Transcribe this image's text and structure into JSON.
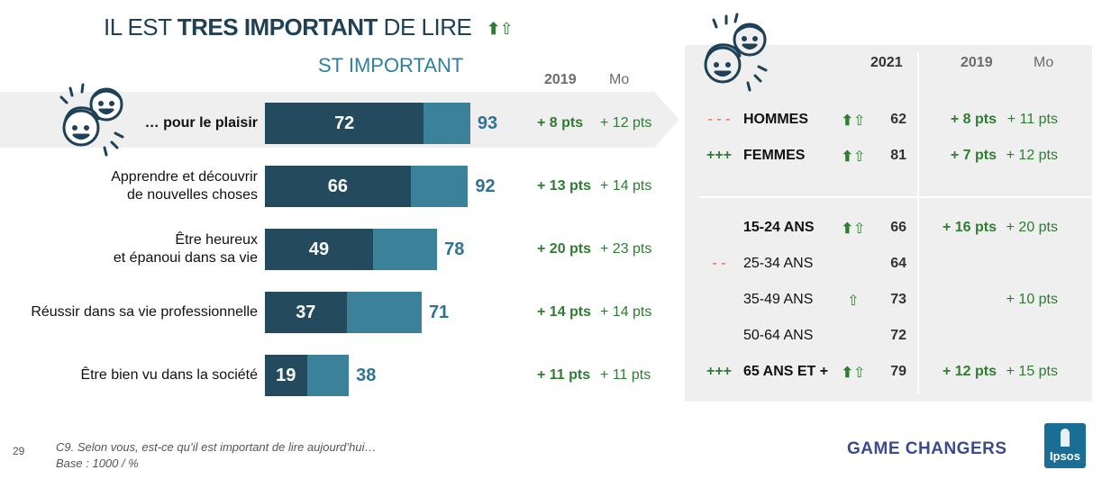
{
  "header": {
    "title_pre": "IL EST ",
    "title_bold": "TRES IMPORTANT",
    "title_post": " DE LIRE",
    "subtitle": "ST IMPORTANT",
    "col_2019": "2019",
    "col_mo": "Mo"
  },
  "chart_data": {
    "type": "bar",
    "categories": [
      "… pour le plaisir",
      "Apprendre et découvrir de nouvelles choses",
      "Être heureux et épanoui dans sa vie",
      "Réussir dans sa vie professionnelle",
      "Être bien vu dans la société"
    ],
    "category_lines": [
      [
        "… pour le plaisir"
      ],
      [
        "Apprendre et découvrir",
        "de nouvelles choses"
      ],
      [
        "Être heureux",
        "et épanoui dans sa vie"
      ],
      [
        "Réussir dans sa vie professionnelle"
      ],
      [
        "Être bien vu dans la société"
      ]
    ],
    "series": [
      {
        "values": [
          72,
          66,
          49,
          37,
          19
        ],
        "color": "#234b5d"
      },
      {
        "values": [
          93,
          92,
          78,
          71,
          38
        ],
        "color": "#3a8199"
      }
    ],
    "delta_2019": [
      "+ 8 pts",
      "+ 13 pts",
      "+ 20 pts",
      "+ 14 pts",
      "+ 11 pts"
    ],
    "delta_mo": [
      "+ 12 pts",
      "+ 14 pts",
      "+ 23 pts",
      "+ 14 pts",
      "+ 11 pts"
    ],
    "highlighted_index": 0,
    "xlim": [
      0,
      100
    ]
  },
  "panel": {
    "col_2021": "2021",
    "col_2019": "2019",
    "col_mo": "Mo",
    "rows": [
      {
        "sig": "- - -",
        "sig_type": "red",
        "label": "HOMMES",
        "bold": true,
        "arrow": "solid-hollow",
        "value": "62",
        "d2019": "+ 8 pts",
        "dmo": "+ 11 pts"
      },
      {
        "sig": "+++",
        "sig_type": "green",
        "label": "FEMMES",
        "bold": true,
        "arrow": "solid-hollow",
        "value": "81",
        "d2019": "+ 7 pts",
        "dmo": "+ 12 pts"
      },
      {
        "sig": "",
        "sig_type": "",
        "label": "15-24 ANS",
        "bold": true,
        "arrow": "solid-hollow",
        "value": "66",
        "d2019": "+ 16 pts",
        "dmo": "+ 20 pts"
      },
      {
        "sig": "- -",
        "sig_type": "red",
        "label": "25-34 ANS",
        "bold": false,
        "arrow": "",
        "value": "64",
        "d2019": "",
        "dmo": ""
      },
      {
        "sig": "",
        "sig_type": "",
        "label": "35-49 ANS",
        "bold": false,
        "arrow": "hollow",
        "value": "73",
        "d2019": "",
        "dmo": "+ 10 pts"
      },
      {
        "sig": "",
        "sig_type": "",
        "label": "50-64 ANS",
        "bold": false,
        "arrow": "",
        "value": "72",
        "d2019": "",
        "dmo": ""
      },
      {
        "sig": "+++",
        "sig_type": "green",
        "label": "65 ANS ET +",
        "bold": true,
        "arrow": "solid-hollow",
        "value": "79",
        "d2019": "+ 12 pts",
        "dmo": "+ 15 pts"
      }
    ]
  },
  "footer": {
    "page_number": "29",
    "question": "C9. Selon vous, est-ce qu’il est important de lire aujourd’hui…",
    "base": "Base : 1000 / %",
    "brand": "GAME CHANGERS",
    "logo_text": "Ipsos"
  },
  "icons": {
    "title_arrows": "up-arrows-icon",
    "people": "two-faces-icon"
  }
}
